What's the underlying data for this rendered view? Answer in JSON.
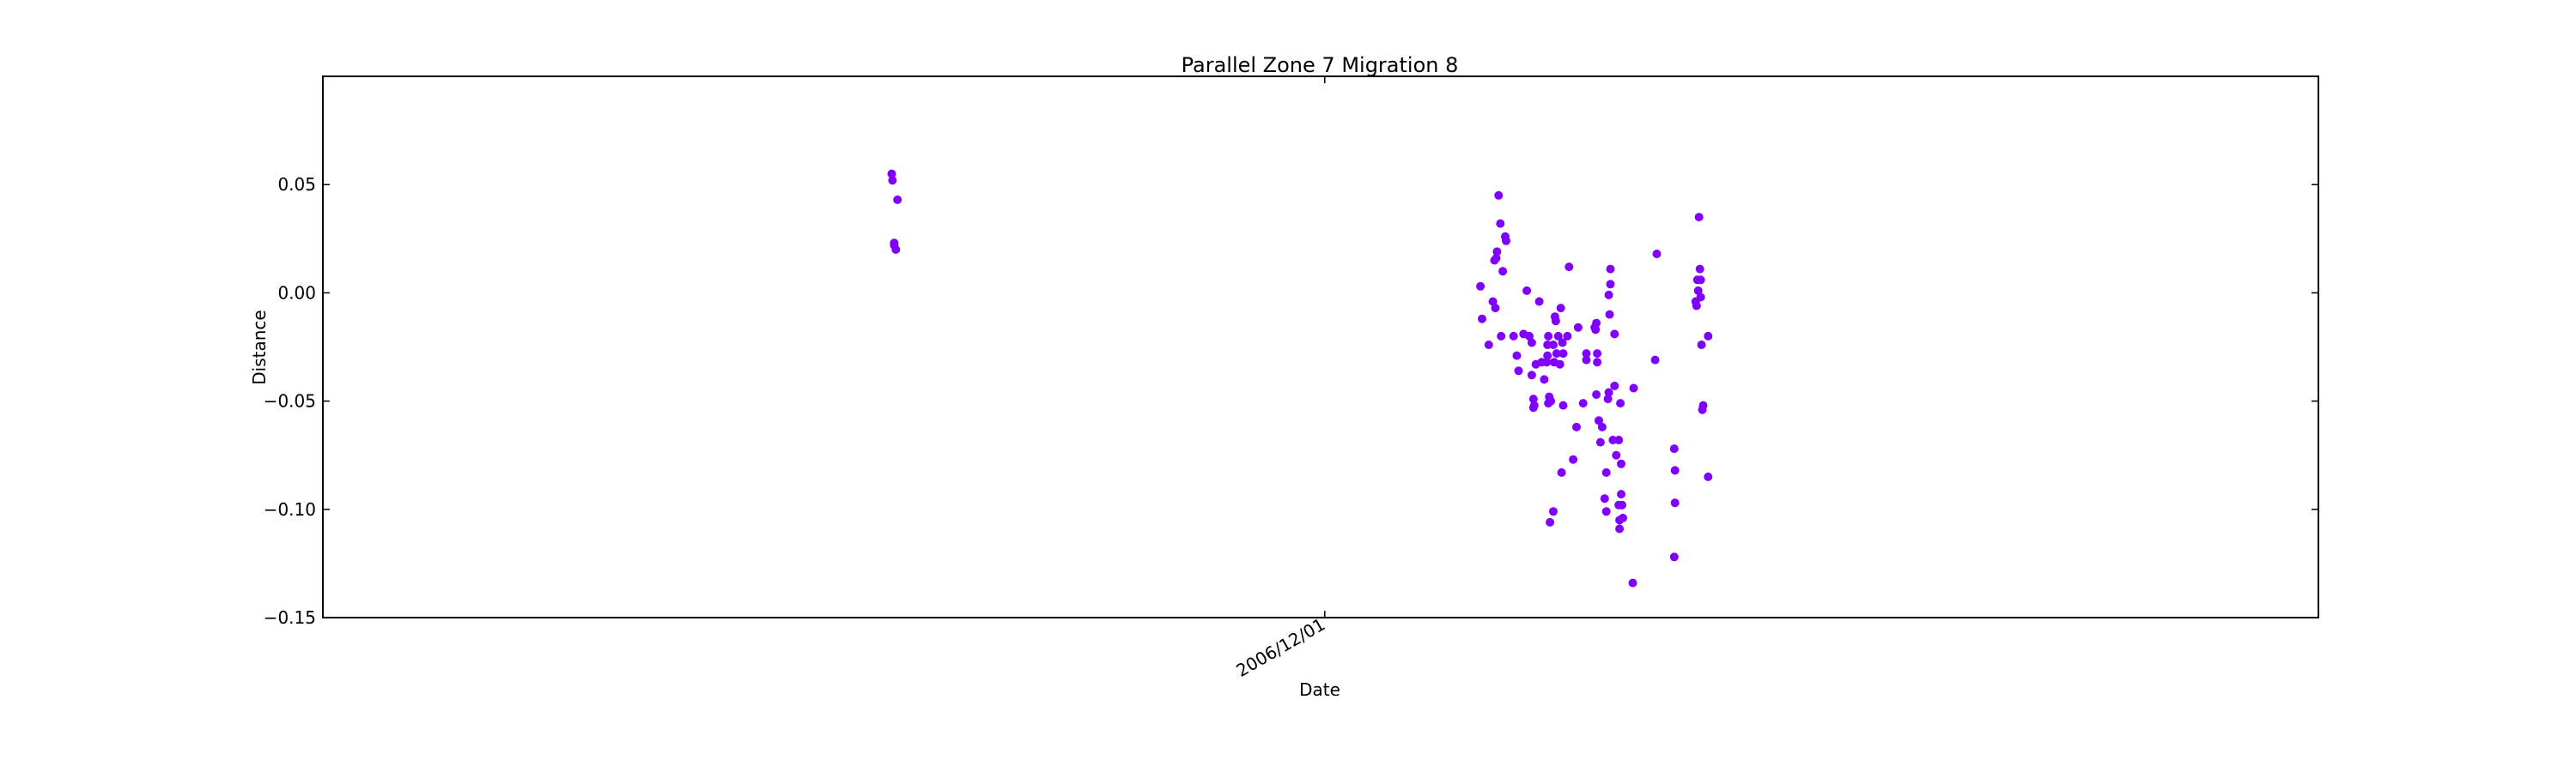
{
  "chart_data": {
    "type": "scatter",
    "title": "Parallel Zone 7 Migration 8",
    "xlabel": "Date",
    "ylabel": "Distance",
    "x_tick_labels": [
      "2006/12/01"
    ],
    "x_tick_values": [
      0
    ],
    "x_unit": "days relative to 2006/12/01",
    "y_ticks": [
      0.05,
      0.0,
      -0.05,
      -0.1,
      -0.15
    ],
    "y_tick_labels": [
      "0.05",
      "0.00",
      "−0.05",
      "−0.10",
      "−0.15"
    ],
    "xlim": [
      -121,
      120
    ],
    "ylim": [
      -0.15,
      0.1
    ],
    "grid": false,
    "color": "#7f00ff",
    "points": [
      [
        -52.3,
        0.055
      ],
      [
        -52.2,
        0.052
      ],
      [
        -51.6,
        0.043
      ],
      [
        -52.0,
        0.023
      ],
      [
        -52.0,
        0.022
      ],
      [
        -51.8,
        0.02
      ],
      [
        18.8,
        0.003
      ],
      [
        19.0,
        -0.012
      ],
      [
        19.8,
        -0.024
      ],
      [
        20.3,
        -0.004
      ],
      [
        20.6,
        -0.007
      ],
      [
        20.5,
        0.015
      ],
      [
        20.7,
        0.016
      ],
      [
        20.8,
        0.019
      ],
      [
        21.0,
        0.045
      ],
      [
        21.2,
        0.032
      ],
      [
        21.5,
        0.01
      ],
      [
        21.8,
        0.026
      ],
      [
        21.9,
        0.024
      ],
      [
        21.3,
        -0.02
      ],
      [
        22.8,
        -0.02
      ],
      [
        23.2,
        -0.029
      ],
      [
        23.4,
        -0.036
      ],
      [
        24.0,
        -0.019
      ],
      [
        24.4,
        0.001
      ],
      [
        24.7,
        -0.02
      ],
      [
        25.0,
        -0.023
      ],
      [
        25.0,
        -0.038
      ],
      [
        25.2,
        -0.049
      ],
      [
        25.3,
        -0.052
      ],
      [
        25.2,
        -0.053
      ],
      [
        25.5,
        -0.033
      ],
      [
        25.9,
        -0.004
      ],
      [
        26.2,
        -0.032
      ],
      [
        26.5,
        -0.04
      ],
      [
        26.9,
        -0.024
      ],
      [
        26.9,
        -0.029
      ],
      [
        26.8,
        -0.032
      ],
      [
        27.0,
        -0.02
      ],
      [
        27.1,
        -0.048
      ],
      [
        27.3,
        -0.05
      ],
      [
        27.0,
        -0.051
      ],
      [
        27.2,
        -0.106
      ],
      [
        27.6,
        -0.101
      ],
      [
        27.6,
        -0.024
      ],
      [
        27.7,
        -0.032
      ],
      [
        27.8,
        -0.011
      ],
      [
        27.9,
        -0.013
      ],
      [
        28.0,
        -0.028
      ],
      [
        28.2,
        -0.02
      ],
      [
        28.4,
        -0.033
      ],
      [
        28.5,
        -0.007
      ],
      [
        28.6,
        -0.083
      ],
      [
        28.8,
        -0.028
      ],
      [
        28.8,
        -0.052
      ],
      [
        28.7,
        -0.023
      ],
      [
        29.3,
        -0.02
      ],
      [
        29.5,
        0.012
      ],
      [
        30.0,
        -0.077
      ],
      [
        30.4,
        -0.062
      ],
      [
        30.6,
        -0.016
      ],
      [
        31.2,
        -0.051
      ],
      [
        31.6,
        -0.028
      ],
      [
        31.6,
        -0.031
      ],
      [
        32.6,
        -0.016
      ],
      [
        32.8,
        -0.014
      ],
      [
        32.9,
        -0.028
      ],
      [
        32.9,
        -0.032
      ],
      [
        32.7,
        -0.017
      ],
      [
        32.8,
        -0.047
      ],
      [
        33.1,
        -0.059
      ],
      [
        33.3,
        -0.069
      ],
      [
        33.5,
        -0.062
      ],
      [
        33.8,
        -0.095
      ],
      [
        34.0,
        -0.083
      ],
      [
        34.0,
        -0.101
      ],
      [
        34.2,
        -0.049
      ],
      [
        34.3,
        -0.046
      ],
      [
        34.4,
        -0.01
      ],
      [
        34.3,
        -0.001
      ],
      [
        34.5,
        0.011
      ],
      [
        34.5,
        0.004
      ],
      [
        34.8,
        -0.068
      ],
      [
        35.0,
        -0.019
      ],
      [
        35.0,
        -0.043
      ],
      [
        35.2,
        -0.075
      ],
      [
        35.5,
        -0.068
      ],
      [
        35.5,
        -0.098
      ],
      [
        35.6,
        -0.105
      ],
      [
        35.6,
        -0.109
      ],
      [
        35.7,
        -0.051
      ],
      [
        35.8,
        -0.079
      ],
      [
        35.8,
        -0.093
      ],
      [
        35.9,
        -0.098
      ],
      [
        36.0,
        -0.104
      ],
      [
        37.2,
        -0.134
      ],
      [
        37.3,
        -0.044
      ],
      [
        39.9,
        -0.031
      ],
      [
        40.1,
        0.018
      ],
      [
        42.2,
        -0.072
      ],
      [
        42.2,
        -0.122
      ],
      [
        42.3,
        -0.082
      ],
      [
        42.3,
        -0.097
      ],
      [
        44.8,
        -0.004
      ],
      [
        44.9,
        -0.006
      ],
      [
        45.0,
        0.006
      ],
      [
        45.1,
        0.001
      ],
      [
        45.2,
        0.035
      ],
      [
        45.3,
        0.011
      ],
      [
        45.4,
        0.006
      ],
      [
        45.4,
        -0.002
      ],
      [
        45.5,
        -0.024
      ],
      [
        45.6,
        -0.054
      ],
      [
        45.7,
        -0.052
      ],
      [
        46.3,
        -0.02
      ],
      [
        46.3,
        -0.085
      ]
    ]
  }
}
